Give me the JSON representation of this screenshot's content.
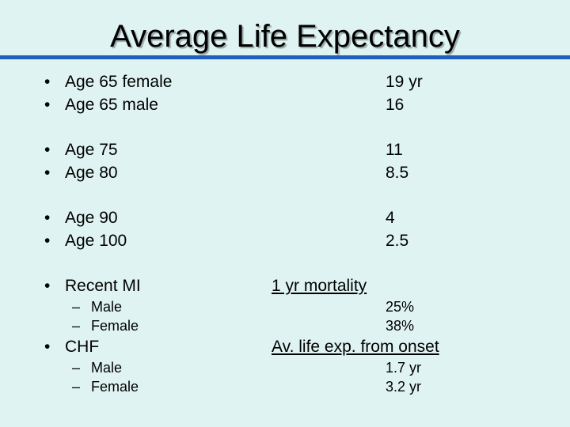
{
  "title": "Average Life Expectancy",
  "rows": [
    {
      "label": "Age 65 female",
      "value": "19 yr"
    },
    {
      "label": "Age 65 male",
      "value": "16"
    },
    {
      "label": "Age 75",
      "value": "11"
    },
    {
      "label": "Age 80",
      "value": "8.5"
    },
    {
      "label": "Age 90",
      "value": "4"
    },
    {
      "label": "Age 100",
      "value": "2.5"
    }
  ],
  "mi": {
    "label": "Recent MI",
    "heading": "1 yr mortality",
    "items": [
      {
        "label": "Male",
        "value": "25%"
      },
      {
        "label": "Female",
        "value": "38%"
      }
    ]
  },
  "chf": {
    "label": "CHF",
    "heading": "Av. life exp. from onset",
    "items": [
      {
        "label": "Male",
        "value": "1.7 yr"
      },
      {
        "label": "Female",
        "value": "3.2 yr"
      }
    ]
  },
  "bullet_char": "•",
  "dash_char": "–"
}
